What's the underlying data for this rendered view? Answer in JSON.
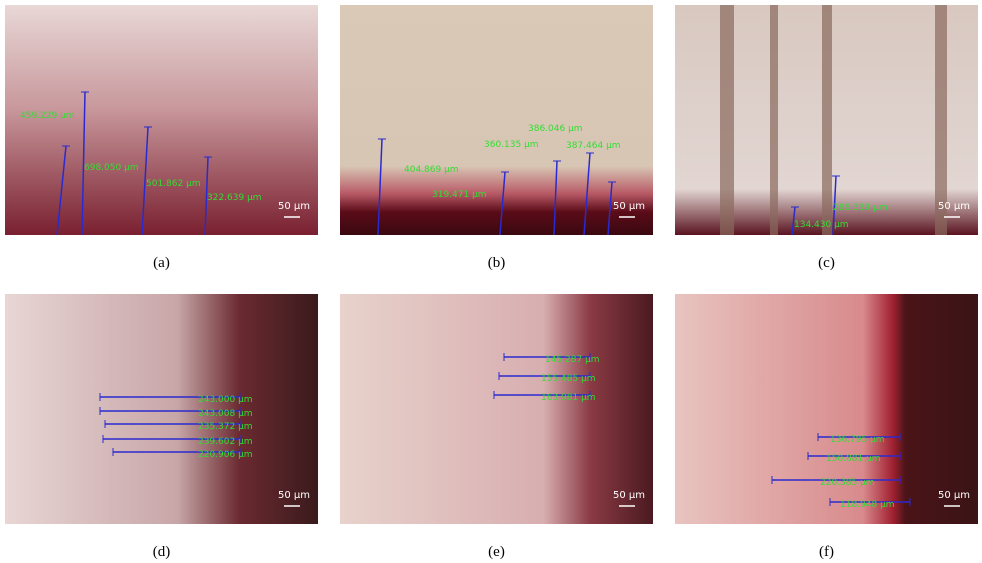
{
  "panels": [
    {
      "caption": "(a)",
      "scale": "50 μm",
      "measurements": [
        "459.229 μm",
        "698.050 μm",
        "501.862 μm",
        "322.639 μm"
      ]
    },
    {
      "caption": "(b)",
      "scale": "50 μm",
      "measurements": [
        "404.869 μm",
        "319.471 μm",
        "360.135 μm",
        "386.046 μm",
        "387.464 μm"
      ]
    },
    {
      "caption": "(c)",
      "scale": "50 μm",
      "measurements": [
        "286.339 μm",
        "134.430 μm"
      ]
    },
    {
      "caption": "(d)",
      "scale": "50 μm",
      "measurements": [
        "243.000 μm",
        "243.008 μm",
        "235.372 μm",
        "239.602 μm",
        "220.906 μm"
      ]
    },
    {
      "caption": "(e)",
      "scale": "50 μm",
      "measurements": [
        "145.287 μm",
        "155.485 μm",
        "163.981 μm"
      ]
    },
    {
      "caption": "(f)",
      "scale": "50 μm",
      "measurements": [
        "136.795 μm",
        "150.881 μm",
        "220.385 μm",
        "118.948 μm"
      ]
    }
  ]
}
